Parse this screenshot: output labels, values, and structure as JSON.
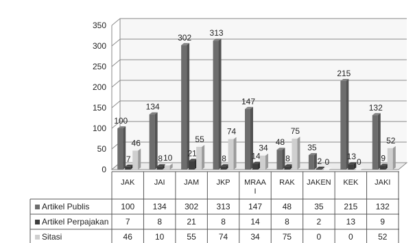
{
  "chart_data": {
    "type": "bar",
    "title": "",
    "xlabel": "",
    "ylabel": "",
    "ylim": [
      0,
      350
    ],
    "yticks": [
      0,
      50,
      100,
      150,
      200,
      250,
      300,
      350
    ],
    "grid": true,
    "legend": "data-table",
    "categories": [
      "JAK",
      "JAI",
      "JAM",
      "JKP",
      "MRAA\nI",
      "RAK",
      "JAKEN",
      "KEK",
      "JAKI"
    ],
    "series": [
      {
        "name": "Artikel Publis",
        "color": "#6d6d6d",
        "values": [
          100,
          134,
          302,
          313,
          147,
          48,
          35,
          215,
          132
        ]
      },
      {
        "name": "Artikel Perpajakan",
        "color": "#3e3e3e",
        "values": [
          7,
          8,
          21,
          8,
          14,
          8,
          2,
          13,
          9
        ]
      },
      {
        "name": "Sitasi",
        "color": "#cfcfcf",
        "values": [
          46,
          10,
          55,
          74,
          34,
          75,
          0,
          0,
          52
        ]
      }
    ]
  },
  "colors": {
    "grid": "#8a8a8a",
    "wall": "#f7f7f7",
    "table_border": "#555555"
  }
}
